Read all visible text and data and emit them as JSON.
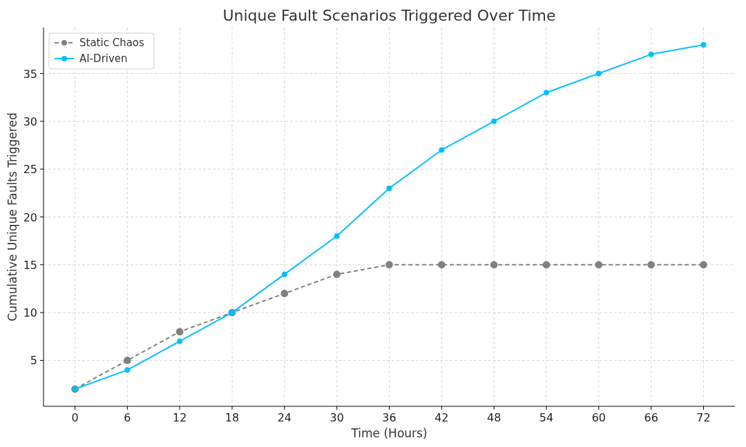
{
  "chart_data": {
    "type": "line",
    "title": "Unique Fault Scenarios Triggered Over Time",
    "xlabel": "Time (Hours)",
    "ylabel": "Cumulative Unique Faults Triggered",
    "x": [
      0,
      6,
      12,
      18,
      24,
      30,
      36,
      42,
      48,
      54,
      60,
      66,
      72
    ],
    "series": [
      {
        "name": "Static Chaos",
        "color": "#808080",
        "line_style": "dashed",
        "values": [
          2,
          5,
          8,
          10,
          12,
          14,
          15,
          15,
          15,
          15,
          15,
          15,
          15
        ]
      },
      {
        "name": "AI-Driven",
        "color": "#00bfff",
        "line_style": "solid",
        "values": [
          2,
          4,
          7,
          10,
          14,
          18,
          23,
          27,
          30,
          33,
          35,
          37,
          38
        ]
      }
    ],
    "xlim": [
      -3.6,
      75.6
    ],
    "xticks": [
      0,
      6,
      12,
      18,
      24,
      30,
      36,
      42,
      48,
      54,
      60,
      66,
      72
    ],
    "ylim": [
      0.2,
      39.8
    ],
    "yticks": [
      5,
      10,
      15,
      20,
      25,
      30,
      35
    ],
    "grid": true,
    "legend": "top left",
    "marker": "circle"
  }
}
